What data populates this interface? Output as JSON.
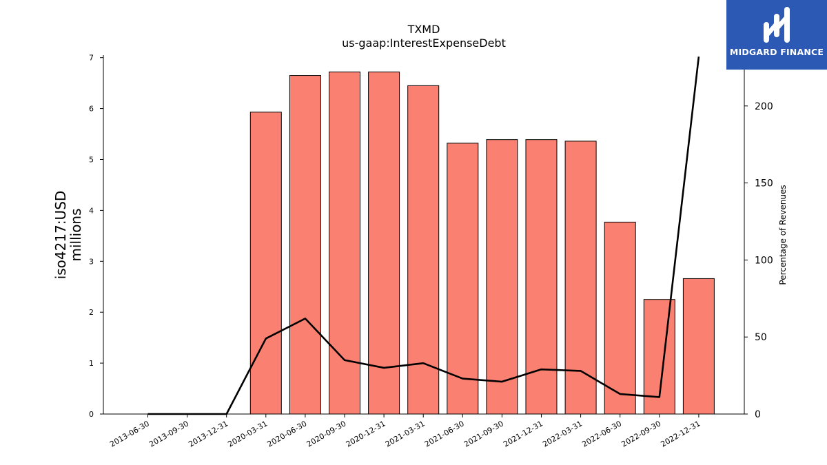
{
  "brand": {
    "name": "MIDGARD FINANCE",
    "color": "#2b59b4"
  },
  "chart_data": {
    "type": "bar",
    "title": "TXMD",
    "subtitle": "us-gaap:InterestExpenseDebt",
    "ylabel": "iso4217:USD\nmillions",
    "y2label": "Percentage of Revenues",
    "categories": [
      "2013-06-30",
      "2013-09-30",
      "2013-12-31",
      "2020-03-31",
      "2020-06-30",
      "2020-09-30",
      "2020-12-31",
      "2021-03-31",
      "2021-06-30",
      "2021-09-30",
      "2021-12-31",
      "2022-03-31",
      "2022-06-30",
      "2022-09-30",
      "2022-12-31"
    ],
    "series": [
      {
        "axis": "left",
        "type": "bar",
        "color": "#fa8072",
        "values": [
          0,
          0,
          0,
          5.93,
          6.65,
          6.72,
          6.72,
          6.45,
          5.32,
          5.39,
          5.39,
          5.36,
          3.77,
          2.25,
          2.66
        ]
      },
      {
        "axis": "right",
        "type": "line",
        "color": "#000000",
        "values": [
          0,
          0,
          0,
          49,
          62,
          35,
          30,
          33,
          23,
          21,
          29,
          28,
          13,
          11,
          232
        ]
      }
    ],
    "ylim": [
      0,
      7.05
    ],
    "y2lim": [
      0,
      233
    ],
    "yticks": [
      0,
      1,
      2,
      3,
      4,
      5,
      6,
      7
    ],
    "y2ticks": [
      0,
      50,
      100,
      150,
      200
    ],
    "grid": false,
    "legend": "none"
  }
}
